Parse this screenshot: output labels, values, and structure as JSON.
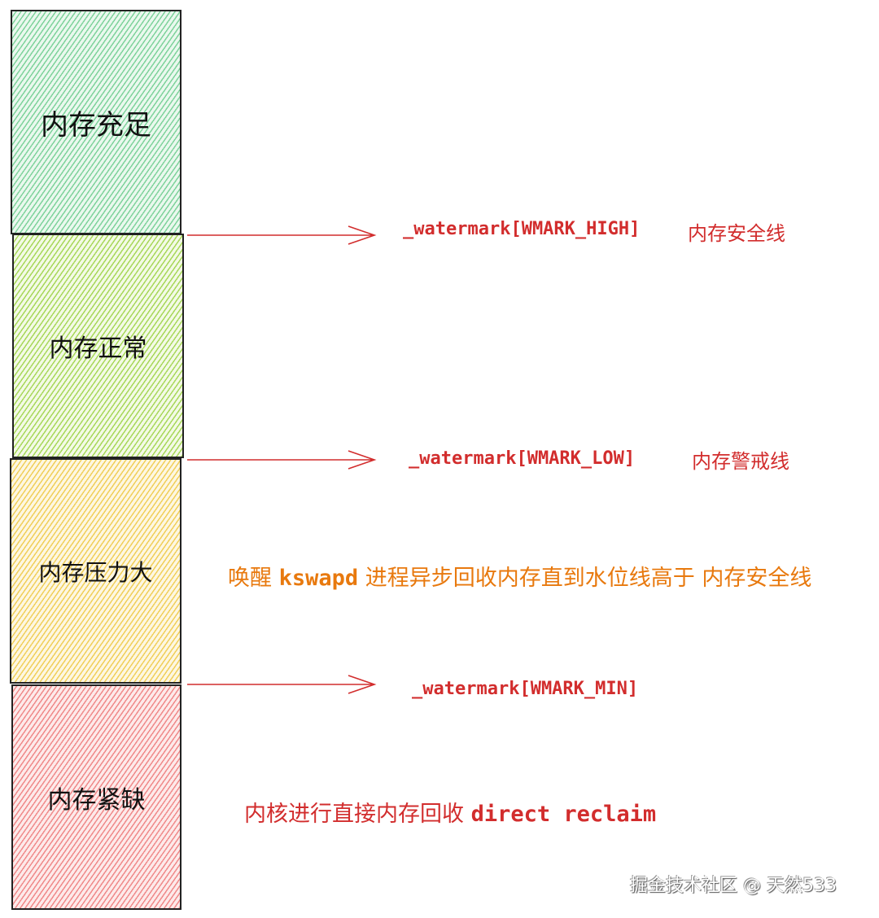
{
  "zones": [
    {
      "label": "内存充足",
      "color": "#7fd39c"
    },
    {
      "label": "内存正常",
      "color": "#a8d85a"
    },
    {
      "label": "内存压力大",
      "color": "#f1cf5a"
    },
    {
      "label": "内存紧缺",
      "color": "#f08a8a"
    }
  ],
  "watermarks": [
    {
      "code": "_watermark[WMARK_HIGH]",
      "desc": "内存安全线"
    },
    {
      "code": "_watermark[WMARK_LOW]",
      "desc": "内存警戒线"
    },
    {
      "code": "_watermark[WMARK_MIN]"
    }
  ],
  "notes": {
    "kswapd": {
      "pre": "唤醒",
      "code": "kswapd",
      "post": "进程异步回收内存直到水位线高于 内存安全线"
    },
    "direct": {
      "pre": "内核进行直接内存回收",
      "code": "direct reclaim"
    }
  },
  "colors": {
    "arrow": "#d22d2d",
    "orange": "#e8790e"
  },
  "credit": "掘金技术社区 @ 天然533"
}
